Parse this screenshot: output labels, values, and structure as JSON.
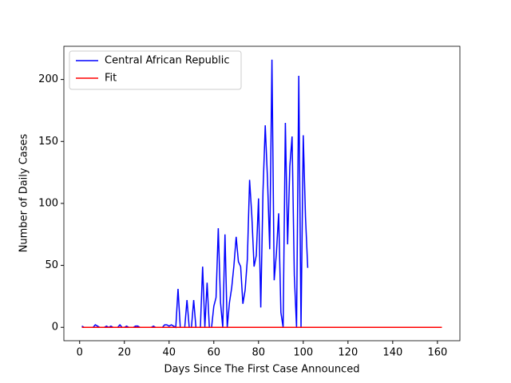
{
  "chart_data": {
    "type": "line",
    "xlabel": "Days Since The First Case Announced",
    "ylabel": "Number of Daily Cases",
    "xlim": [
      -7.05,
      170.05
    ],
    "ylim": [
      -10.8,
      226.8
    ],
    "xticks": [
      0,
      20,
      40,
      60,
      80,
      100,
      120,
      140,
      160
    ],
    "yticks": [
      0,
      50,
      100,
      150,
      200
    ],
    "legend": "upper left",
    "series": [
      {
        "name": "Central African Republic",
        "color": "#0000ff",
        "x": [
          1,
          2,
          3,
          4,
          5,
          6,
          7,
          8,
          9,
          10,
          11,
          12,
          13,
          14,
          15,
          16,
          17,
          18,
          19,
          20,
          21,
          22,
          23,
          24,
          25,
          26,
          27,
          28,
          29,
          30,
          31,
          32,
          33,
          34,
          35,
          36,
          37,
          38,
          39,
          40,
          41,
          42,
          43,
          44,
          45,
          46,
          47,
          48,
          49,
          50,
          51,
          52,
          53,
          54,
          55,
          56,
          57,
          58,
          59,
          60,
          61,
          62,
          63,
          64,
          65,
          66,
          67,
          68,
          69,
          70,
          71,
          72,
          73,
          74,
          75,
          76,
          77,
          78,
          79,
          80,
          81,
          82,
          83,
          84,
          85,
          86,
          87,
          88,
          89,
          90,
          91,
          92,
          93,
          94,
          95,
          96,
          97,
          98,
          99,
          100,
          101,
          102
        ],
        "values": [
          1,
          0,
          0,
          0,
          0,
          0,
          2,
          1,
          0,
          0,
          0,
          1,
          0,
          1,
          0,
          0,
          0,
          2,
          0,
          0,
          1,
          0,
          0,
          0,
          1,
          1,
          0,
          0,
          0,
          0,
          0,
          0,
          1,
          0,
          0,
          0,
          0,
          2,
          2,
          1,
          2,
          1,
          0,
          31,
          0,
          0,
          0,
          22,
          0,
          0,
          22,
          0,
          0,
          0,
          49,
          0,
          36,
          0,
          0,
          17,
          24,
          80,
          20,
          0,
          75,
          0,
          20,
          32,
          50,
          73,
          53,
          49,
          19,
          30,
          55,
          119,
          90,
          49,
          58,
          104,
          16,
          110,
          163,
          120,
          63,
          216,
          38,
          60,
          92,
          12,
          0,
          165,
          67,
          130,
          154,
          42,
          0,
          203,
          0,
          155,
          89,
          48
        ]
      },
      {
        "name": "Fit",
        "color": "#ff0000",
        "x": [
          1,
          162
        ],
        "values": [
          0,
          0
        ]
      }
    ]
  }
}
